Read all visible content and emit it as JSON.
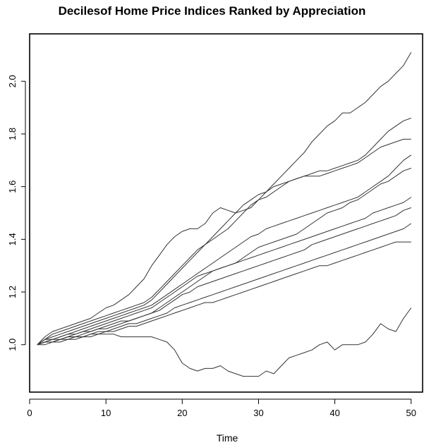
{
  "chart_data": {
    "type": "line",
    "title": "Decilesof Home Price Indices Ranked by Appreciation",
    "xlabel": "Time",
    "ylabel": "",
    "xlim": [
      0,
      51.5
    ],
    "ylim": [
      0.82,
      2.18
    ],
    "x_ticks": [
      0,
      10,
      20,
      30,
      40,
      50
    ],
    "y_ticks": [
      1.0,
      1.2,
      1.4,
      1.6,
      1.8,
      2.0
    ],
    "x_tick_labels": [
      "0",
      "10",
      "20",
      "30",
      "40",
      "50"
    ],
    "y_tick_labels": [
      "1.0",
      "1.2",
      "1.4",
      "1.6",
      "1.8",
      "2.0"
    ],
    "grid": false,
    "legend": "none",
    "line_color": "#333333",
    "x_start": 1,
    "series": [
      {
        "values": [
          1.0,
          1.03,
          1.05,
          1.06,
          1.07,
          1.08,
          1.09,
          1.1,
          1.12,
          1.14,
          1.15,
          1.17,
          1.19,
          1.22,
          1.25,
          1.3,
          1.34,
          1.38,
          1.41,
          1.43,
          1.44,
          1.44,
          1.46,
          1.5,
          1.52,
          1.51,
          1.5,
          1.51,
          1.52,
          1.55,
          1.58,
          1.61,
          1.64,
          1.67,
          1.7,
          1.73,
          1.77,
          1.8,
          1.83,
          1.85,
          1.88,
          1.88,
          1.9,
          1.92,
          1.95,
          1.98,
          2.0,
          2.03,
          2.06,
          2.11
        ]
      },
      {
        "values": [
          1.0,
          1.02,
          1.04,
          1.05,
          1.06,
          1.07,
          1.08,
          1.09,
          1.1,
          1.11,
          1.12,
          1.13,
          1.14,
          1.15,
          1.16,
          1.18,
          1.21,
          1.24,
          1.27,
          1.3,
          1.33,
          1.36,
          1.38,
          1.4,
          1.42,
          1.44,
          1.47,
          1.5,
          1.53,
          1.55,
          1.56,
          1.58,
          1.6,
          1.62,
          1.63,
          1.64,
          1.65,
          1.66,
          1.66,
          1.67,
          1.68,
          1.69,
          1.7,
          1.72,
          1.75,
          1.78,
          1.81,
          1.83,
          1.85,
          1.86
        ]
      },
      {
        "values": [
          1.0,
          1.02,
          1.03,
          1.04,
          1.05,
          1.06,
          1.07,
          1.08,
          1.09,
          1.1,
          1.11,
          1.12,
          1.13,
          1.14,
          1.15,
          1.17,
          1.2,
          1.23,
          1.26,
          1.29,
          1.32,
          1.35,
          1.38,
          1.41,
          1.44,
          1.47,
          1.5,
          1.53,
          1.55,
          1.57,
          1.58,
          1.6,
          1.61,
          1.62,
          1.63,
          1.64,
          1.64,
          1.64,
          1.65,
          1.66,
          1.67,
          1.68,
          1.69,
          1.71,
          1.73,
          1.75,
          1.76,
          1.77,
          1.78,
          1.78
        ]
      },
      {
        "values": [
          1.0,
          1.02,
          1.02,
          1.03,
          1.04,
          1.05,
          1.06,
          1.07,
          1.08,
          1.09,
          1.1,
          1.11,
          1.12,
          1.13,
          1.14,
          1.15,
          1.17,
          1.19,
          1.21,
          1.23,
          1.25,
          1.27,
          1.29,
          1.31,
          1.33,
          1.35,
          1.37,
          1.39,
          1.41,
          1.42,
          1.44,
          1.45,
          1.46,
          1.47,
          1.48,
          1.49,
          1.5,
          1.51,
          1.52,
          1.53,
          1.54,
          1.55,
          1.56,
          1.58,
          1.6,
          1.62,
          1.64,
          1.67,
          1.7,
          1.72
        ]
      },
      {
        "values": [
          1.0,
          1.01,
          1.02,
          1.03,
          1.04,
          1.04,
          1.05,
          1.06,
          1.07,
          1.08,
          1.09,
          1.1,
          1.11,
          1.12,
          1.13,
          1.14,
          1.16,
          1.18,
          1.2,
          1.22,
          1.24,
          1.26,
          1.27,
          1.28,
          1.29,
          1.3,
          1.31,
          1.33,
          1.35,
          1.37,
          1.38,
          1.39,
          1.4,
          1.41,
          1.42,
          1.44,
          1.46,
          1.48,
          1.5,
          1.51,
          1.52,
          1.54,
          1.55,
          1.57,
          1.59,
          1.61,
          1.62,
          1.64,
          1.66,
          1.67
        ]
      },
      {
        "values": [
          1.0,
          1.01,
          1.02,
          1.02,
          1.03,
          1.04,
          1.05,
          1.05,
          1.06,
          1.07,
          1.08,
          1.09,
          1.09,
          1.1,
          1.11,
          1.12,
          1.14,
          1.16,
          1.18,
          1.2,
          1.22,
          1.24,
          1.26,
          1.28,
          1.29,
          1.3,
          1.31,
          1.32,
          1.33,
          1.34,
          1.35,
          1.36,
          1.37,
          1.38,
          1.39,
          1.4,
          1.41,
          1.42,
          1.43,
          1.44,
          1.45,
          1.46,
          1.47,
          1.48,
          1.5,
          1.51,
          1.52,
          1.53,
          1.54,
          1.56
        ]
      },
      {
        "values": [
          1.0,
          1.01,
          1.01,
          1.02,
          1.03,
          1.03,
          1.04,
          1.05,
          1.06,
          1.06,
          1.07,
          1.08,
          1.09,
          1.1,
          1.11,
          1.12,
          1.13,
          1.15,
          1.17,
          1.19,
          1.2,
          1.22,
          1.23,
          1.24,
          1.25,
          1.26,
          1.27,
          1.28,
          1.29,
          1.3,
          1.31,
          1.32,
          1.33,
          1.34,
          1.35,
          1.36,
          1.38,
          1.39,
          1.4,
          1.41,
          1.42,
          1.43,
          1.44,
          1.45,
          1.46,
          1.47,
          1.48,
          1.49,
          1.51,
          1.52
        ]
      },
      {
        "values": [
          1.0,
          1.01,
          1.01,
          1.02,
          1.02,
          1.03,
          1.03,
          1.04,
          1.05,
          1.05,
          1.06,
          1.07,
          1.08,
          1.08,
          1.09,
          1.1,
          1.11,
          1.12,
          1.14,
          1.15,
          1.16,
          1.17,
          1.18,
          1.19,
          1.2,
          1.21,
          1.22,
          1.23,
          1.24,
          1.25,
          1.26,
          1.27,
          1.28,
          1.29,
          1.3,
          1.31,
          1.32,
          1.33,
          1.34,
          1.35,
          1.36,
          1.37,
          1.38,
          1.39,
          1.4,
          1.41,
          1.42,
          1.43,
          1.44,
          1.46
        ]
      },
      {
        "values": [
          1.0,
          1.0,
          1.01,
          1.01,
          1.02,
          1.02,
          1.03,
          1.03,
          1.04,
          1.05,
          1.05,
          1.06,
          1.07,
          1.07,
          1.08,
          1.09,
          1.1,
          1.11,
          1.12,
          1.13,
          1.14,
          1.15,
          1.16,
          1.16,
          1.17,
          1.18,
          1.19,
          1.2,
          1.21,
          1.22,
          1.23,
          1.24,
          1.25,
          1.26,
          1.27,
          1.28,
          1.29,
          1.3,
          1.3,
          1.31,
          1.32,
          1.33,
          1.34,
          1.35,
          1.36,
          1.37,
          1.38,
          1.39,
          1.39,
          1.39
        ]
      },
      {
        "values": [
          1.0,
          1.01,
          1.01,
          1.02,
          1.03,
          1.03,
          1.03,
          1.04,
          1.04,
          1.04,
          1.04,
          1.03,
          1.03,
          1.03,
          1.03,
          1.03,
          1.02,
          1.01,
          0.98,
          0.93,
          0.91,
          0.9,
          0.91,
          0.91,
          0.92,
          0.9,
          0.89,
          0.88,
          0.88,
          0.88,
          0.9,
          0.89,
          0.92,
          0.95,
          0.96,
          0.97,
          0.98,
          1.0,
          1.01,
          0.98,
          1.0,
          1.0,
          1.0,
          1.01,
          1.04,
          1.08,
          1.06,
          1.05,
          1.1,
          1.14
        ]
      }
    ]
  }
}
